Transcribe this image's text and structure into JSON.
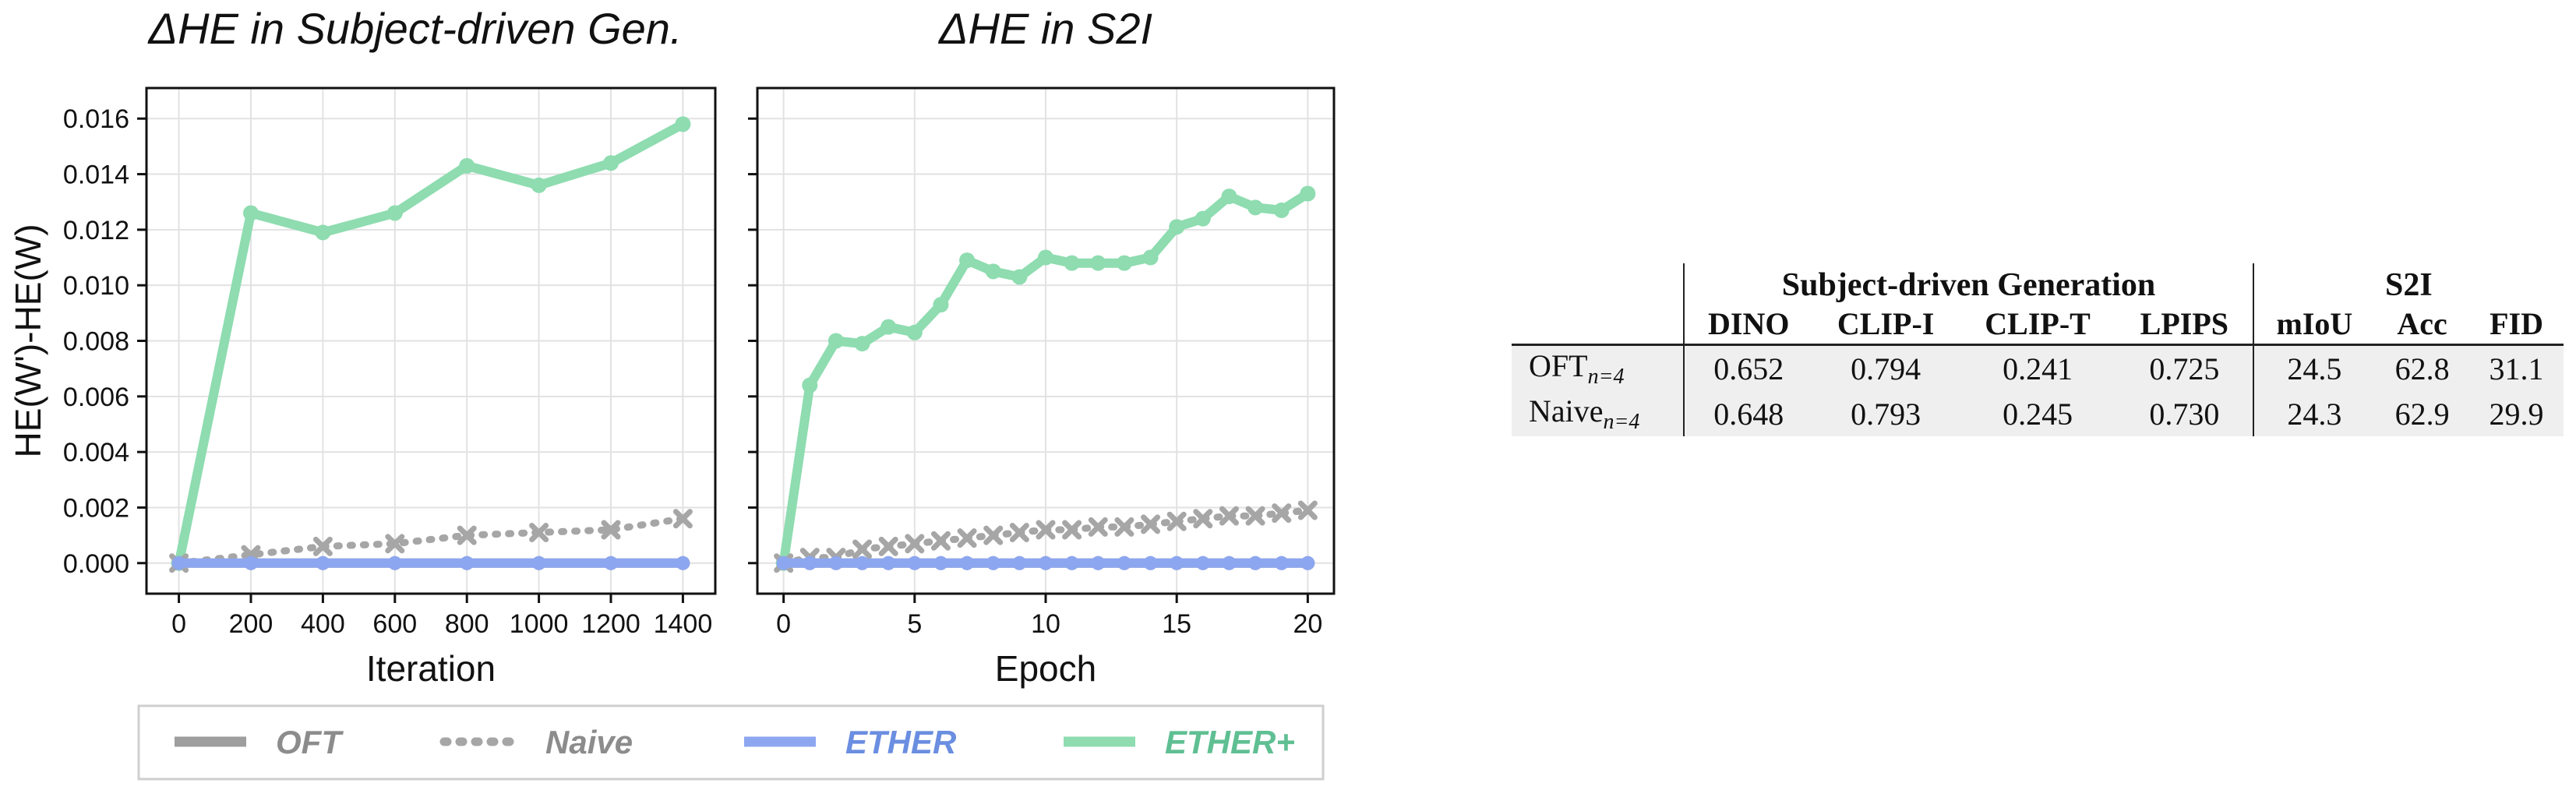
{
  "chart_data": [
    {
      "type": "line",
      "title": "ΔHE in Subject-driven Gen.",
      "xlabel": "Iteration",
      "ylabel": "HE(W')-HE(W)",
      "x": [
        0,
        200,
        400,
        600,
        800,
        1000,
        1200,
        1400
      ],
      "xlim": [
        -90,
        1490
      ],
      "ylim": [
        -0.0011,
        0.0171
      ],
      "xticks": [
        "0",
        "200",
        "400",
        "600",
        "800",
        "1000",
        "1200",
        "1400"
      ],
      "yticks": [
        "0.000",
        "0.002",
        "0.004",
        "0.006",
        "0.008",
        "0.010",
        "0.012",
        "0.014",
        "0.016"
      ],
      "grid": true,
      "series": [
        {
          "name": "OFT",
          "values": [
            0,
            0,
            0,
            0,
            0,
            0,
            0,
            0
          ]
        },
        {
          "name": "Naive",
          "values": [
            0,
            0.0003,
            0.0006,
            0.0007,
            0.001,
            0.0011,
            0.0012,
            0.0016
          ]
        },
        {
          "name": "ETHER",
          "values": [
            0,
            0,
            0,
            0,
            0,
            0,
            0,
            0
          ]
        },
        {
          "name": "ETHER+",
          "values": [
            0,
            0.0126,
            0.0119,
            0.0126,
            0.0143,
            0.0136,
            0.0144,
            0.0158
          ]
        }
      ]
    },
    {
      "type": "line",
      "title": "ΔHE in S2I",
      "xlabel": "Epoch",
      "ylabel": "",
      "x": [
        0,
        1,
        2,
        3,
        4,
        5,
        6,
        7,
        8,
        9,
        10,
        11,
        12,
        13,
        14,
        15,
        16,
        17,
        18,
        19,
        20
      ],
      "xlim": [
        -1,
        21
      ],
      "ylim": [
        -0.0011,
        0.0171
      ],
      "xticks": [
        "0",
        "5",
        "10",
        "15",
        "20"
      ],
      "grid": true,
      "series": [
        {
          "name": "OFT",
          "values": [
            0,
            0,
            0,
            0,
            0,
            0,
            0,
            0,
            0,
            0,
            0,
            0,
            0,
            0,
            0,
            0,
            0,
            0,
            0,
            0,
            0
          ]
        },
        {
          "name": "Naive",
          "values": [
            0,
            0.0002,
            0.0002,
            0.0005,
            0.0006,
            0.0007,
            0.0008,
            0.0009,
            0.001,
            0.0011,
            0.0012,
            0.0012,
            0.0013,
            0.0013,
            0.0014,
            0.0015,
            0.0016,
            0.0017,
            0.0017,
            0.0018,
            0.0019
          ]
        },
        {
          "name": "ETHER",
          "values": [
            0,
            0,
            0,
            0,
            0,
            0,
            0,
            0,
            0,
            0,
            0,
            0,
            0,
            0,
            0,
            0,
            0,
            0,
            0,
            0,
            0
          ]
        },
        {
          "name": "ETHER+",
          "values": [
            0,
            0.0064,
            0.008,
            0.0079,
            0.0085,
            0.0083,
            0.0093,
            0.0109,
            0.0105,
            0.0103,
            0.011,
            0.0108,
            0.0108,
            0.0108,
            0.011,
            0.0121,
            0.0124,
            0.0132,
            0.0128,
            0.0127,
            0.0133
          ]
        }
      ]
    }
  ],
  "legend": {
    "position": "bottom-center",
    "items": [
      {
        "label": "OFT",
        "style": "solid",
        "color": "#9e9e9e",
        "text_color": "#8c8c8c"
      },
      {
        "label": "Naive",
        "style": "dotted",
        "color": "#a6a6a6",
        "text_color": "#8c8c8c"
      },
      {
        "label": "ETHER",
        "style": "solid",
        "color": "#8da6f0",
        "text_color": "#6a8ee0"
      },
      {
        "label": "ETHER+",
        "style": "solid",
        "color": "#8edcb0",
        "text_color": "#5fbf93"
      }
    ]
  },
  "table": {
    "groups": [
      "Subject-driven Generation",
      "S2I"
    ],
    "columns": [
      "DINO",
      "CLIP-I",
      "CLIP-T",
      "LPIPS",
      "mIoU",
      "Acc",
      "FID"
    ],
    "rows": [
      {
        "name": "OFT",
        "sub": "n=4",
        "values": [
          "0.652",
          "0.794",
          "0.241",
          "0.725",
          "24.5",
          "62.8",
          "31.1"
        ]
      },
      {
        "name": "Naive",
        "sub": "n=4",
        "values": [
          "0.648",
          "0.793",
          "0.245",
          "0.730",
          "24.3",
          "62.9",
          "29.9"
        ]
      }
    ]
  },
  "colors": {
    "OFT": "#9e9e9e",
    "Naive": "#a6a6a6",
    "ETHER": "#8da6f0",
    "ETHER+": "#8edcb0"
  }
}
